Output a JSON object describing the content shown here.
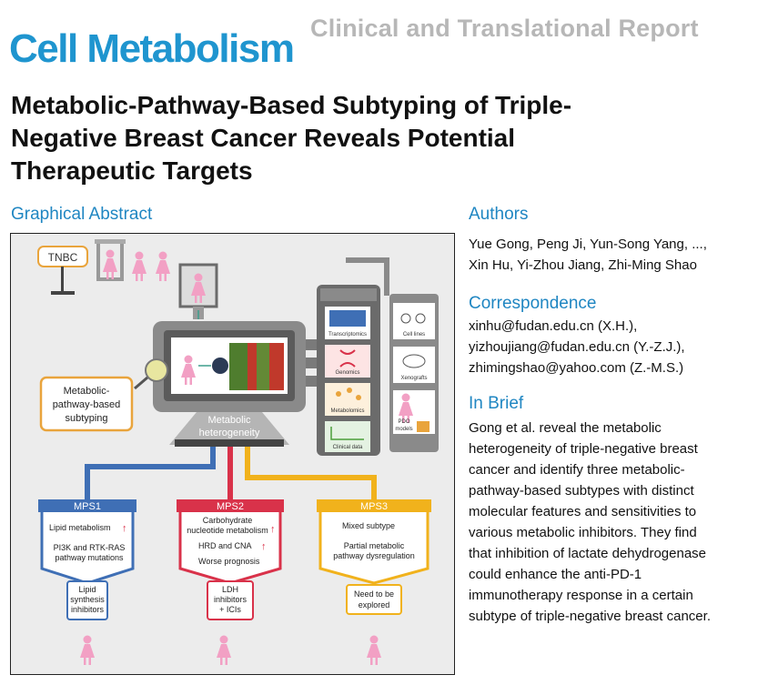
{
  "header": {
    "journal": "Cell Metabolism",
    "article_type": "Clinical and Translational Report",
    "title_lines": [
      "Metabolic-Pathway-Based Subtyping of Triple-",
      "Negative Breast Cancer Reveals Potential",
      "Therapeutic Targets"
    ]
  },
  "sections": {
    "graphical_abstract": "Graphical Abstract",
    "authors": "Authors",
    "correspondence": "Correspondence",
    "in_brief": "In Brief"
  },
  "authors_lines": [
    "Yue Gong, Peng Ji, Yun-Song Yang, ...,",
    "Xin Hu, Yi-Zhou Jiang, Zhi-Ming Shao"
  ],
  "correspondence_lines": [
    "xinhu@fudan.edu.cn (X.H.),",
    "yizhoujiang@fudan.edu.cn (Y.-Z.J.),",
    "zhimingshao@yahoo.com (Z.-M.S.)"
  ],
  "in_brief_lines": [
    "Gong et al. reveal the metabolic",
    "heterogeneity of triple-negative breast",
    "cancer and identify three metabolic-",
    "pathway-based subtypes with distinct",
    "molecular features and sensitivities to",
    "various metabolic inhibitors. They find",
    "that inhibition of lactate dehydrogenase",
    "could enhance the anti-PD-1",
    "immunotherapy response in a certain",
    "subtype of triple-negative breast cancer."
  ],
  "abstract": {
    "tnbc": "TNBC",
    "subtyping_lines": [
      "Metabolic-",
      "pathway-based",
      "subtyping"
    ],
    "heterogeneity_lines": [
      "Metabolic",
      "heterogeneity"
    ],
    "omics": [
      "Transcriptomics",
      "Genomics",
      "Metabolomics",
      "Clinical data"
    ],
    "models": [
      "Cell lines",
      "Xenografts",
      "PDO",
      "models"
    ],
    "mps1": {
      "name": "MPS1",
      "items": [
        "Lipid metabolism",
        "PI3K and RTK-RAS",
        "pathway mutations"
      ],
      "therapy": [
        "Lipid",
        "synthesis",
        "inhibitors"
      ]
    },
    "mps2": {
      "name": "MPS2",
      "items": [
        "Carbohydrate",
        "nucleotide metabolism",
        "HRD and CNA",
        "Worse prognosis"
      ],
      "therapy": [
        "LDH",
        "inhibitors",
        "+ ICIs"
      ]
    },
    "mps3": {
      "name": "MPS3",
      "items": [
        "Mixed subtype",
        "Partial metabolic",
        "pathway dysregulation"
      ],
      "therapy": [
        "Need to be",
        "explored"
      ]
    }
  },
  "colors": {
    "brand_blue": "#1f95cf",
    "section_blue": "#1f86c2",
    "mps1_blue": "#3f6fb5",
    "mps2_red": "#d9324a",
    "mps3_yellow": "#f1b21c",
    "orange_accent": "#e9a43c"
  }
}
